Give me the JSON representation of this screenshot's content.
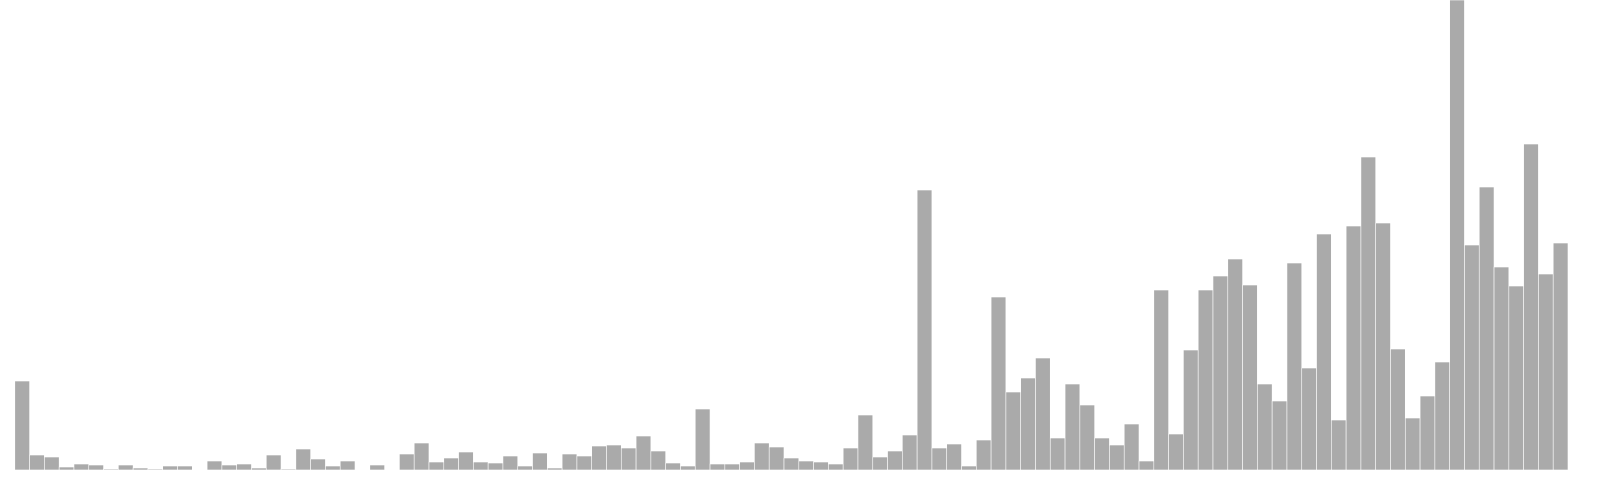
{
  "chart_data": {
    "type": "bar",
    "color": "#aaaaaa",
    "ylim": [
      0,
      470
    ],
    "categories": [
      null,
      null,
      null,
      null,
      null,
      null,
      null,
      null,
      null,
      null,
      null,
      null,
      null,
      null,
      null,
      null,
      null,
      null,
      null,
      null,
      null,
      null,
      null,
      null,
      null,
      null,
      null,
      null,
      null,
      null,
      null,
      null,
      null,
      null,
      null,
      null,
      null,
      null,
      null,
      null,
      null,
      null,
      null,
      null,
      null,
      null,
      null,
      null,
      null,
      null,
      null,
      null,
      null,
      null,
      null,
      null,
      null,
      null,
      null,
      null,
      null,
      null,
      null,
      null,
      null,
      null,
      null,
      null,
      null,
      null,
      null,
      null,
      null,
      null,
      null,
      null,
      null,
      null,
      null,
      null,
      null,
      null,
      null,
      null,
      null,
      null,
      null,
      null,
      null,
      null,
      null,
      null,
      null,
      null,
      null,
      null,
      null,
      null,
      null,
      null,
      null,
      null,
      null,
      null,
      null,
      null
    ],
    "values": [
      0,
      89,
      15,
      13,
      3,
      6,
      5,
      1,
      5,
      2,
      1,
      4,
      4,
      0,
      9,
      5,
      6,
      2,
      15,
      1,
      21,
      11,
      4,
      9,
      0,
      5,
      0,
      16,
      27,
      8,
      12,
      18,
      8,
      7,
      14,
      4,
      17,
      2,
      16,
      14,
      24,
      25,
      22,
      34,
      19,
      7,
      4,
      61,
      6,
      6,
      8,
      27,
      23,
      12,
      9,
      8,
      6,
      22,
      55,
      13,
      19,
      35,
      280,
      22,
      26,
      4,
      30,
      173,
      78,
      92,
      112,
      32,
      86,
      65,
      32,
      25,
      46,
      9,
      180,
      36,
      120,
      180,
      194,
      211,
      185,
      86,
      69,
      207,
      102,
      236,
      50,
      244,
      313,
      247,
      121,
      52,
      74,
      108,
      470,
      225,
      283,
      203,
      184,
      326,
      196,
      227
    ]
  }
}
